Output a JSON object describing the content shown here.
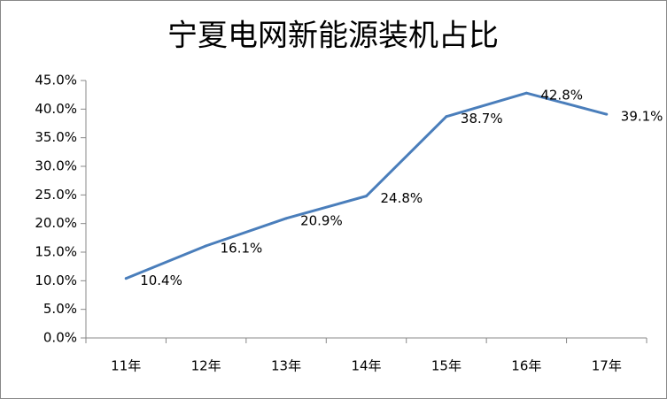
{
  "chart_data": {
    "type": "line",
    "title": "宁夏电网新能源装机占比",
    "categories": [
      "11年",
      "12年",
      "13年",
      "14年",
      "15年",
      "16年",
      "17年"
    ],
    "values": [
      10.4,
      16.1,
      20.9,
      24.8,
      38.7,
      42.8,
      39.1
    ],
    "value_labels": [
      "10.4%",
      "16.1%",
      "20.9%",
      "24.8%",
      "38.7%",
      "42.8%",
      "39.1%"
    ],
    "color": "#4a7ebb",
    "ylim": [
      0,
      45
    ],
    "yticks": [
      {
        "value": 0,
        "label": "0.0%"
      },
      {
        "value": 5,
        "label": "5.0%"
      },
      {
        "value": 10,
        "label": "10.0%"
      },
      {
        "value": 15,
        "label": "15.0%"
      },
      {
        "value": 20,
        "label": "20.0%"
      },
      {
        "value": 25,
        "label": "25.0%"
      },
      {
        "value": 30,
        "label": "30.0%"
      },
      {
        "value": 35,
        "label": "35.0%"
      },
      {
        "value": 40,
        "label": "40.0%"
      },
      {
        "value": 45,
        "label": "45.0%"
      }
    ],
    "grid": false
  }
}
